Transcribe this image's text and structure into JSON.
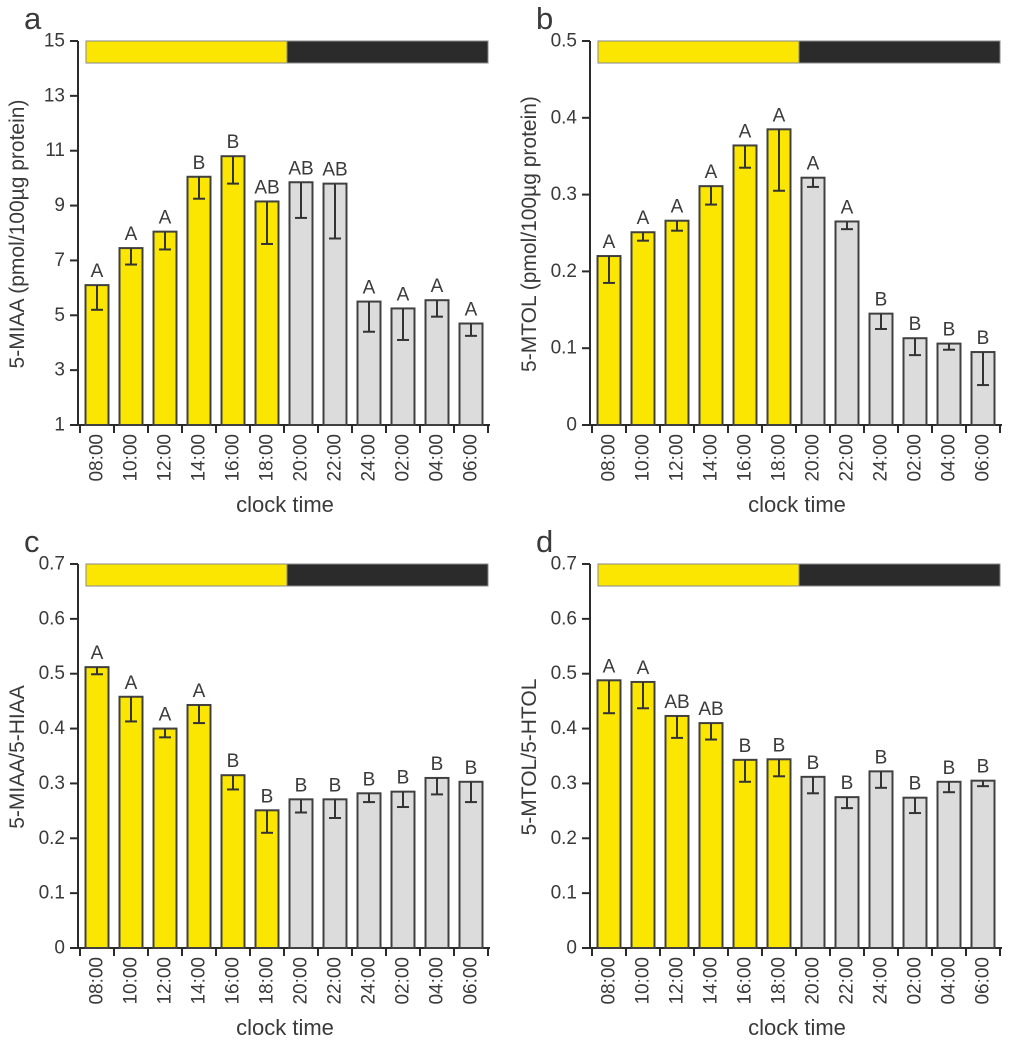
{
  "figure": {
    "background": "#FFFFFF",
    "xlabel": "clock time"
  },
  "colors": {
    "day_bar": "#FAE600",
    "night_bar": "#DCDCDC",
    "bar_outline": "#404040",
    "error_bar": "#333333",
    "axis": "#2B2B2B",
    "text": "#3A3A3A",
    "strip_light": "#FAE600",
    "strip_dark": "#2B2B2B",
    "strip_border": "#8A8A8A"
  },
  "chart_data": [
    {
      "panel": "a",
      "type": "bar",
      "ylabel": "5-MIAA (pmol/100µg protein)",
      "xlabel": "clock time",
      "ylim": [
        1,
        15
      ],
      "yticks": [
        1,
        3,
        5,
        7,
        9,
        11,
        13,
        15
      ],
      "ytick_labels": [
        "1",
        "3",
        "5",
        "7",
        "9",
        "11",
        "13",
        "15"
      ],
      "categories": [
        "08:00",
        "10:00",
        "12:00",
        "14:00",
        "16:00",
        "18:00",
        "20:00",
        "22:00",
        "24:00",
        "02:00",
        "04:00",
        "06:00"
      ],
      "values": [
        6.1,
        7.45,
        8.05,
        10.05,
        10.8,
        9.15,
        9.85,
        9.8,
        5.5,
        5.25,
        5.55,
        4.7
      ],
      "err_lower": [
        0.9,
        0.6,
        0.65,
        0.8,
        1.0,
        1.55,
        1.3,
        2.0,
        1.1,
        1.15,
        0.6,
        0.45
      ],
      "sig_letters": [
        "A",
        "A",
        "A",
        "B",
        "B",
        "AB",
        "AB",
        "AB",
        "A",
        "A",
        "A",
        "A"
      ],
      "n_light_bars": 6,
      "light_dark_strip": {
        "light_fraction": 0.5
      },
      "grid": false,
      "legend": null
    },
    {
      "panel": "b",
      "type": "bar",
      "ylabel": "5-MTOL (pmol/100µg protein)",
      "xlabel": "clock time",
      "ylim": [
        0,
        0.5
      ],
      "yticks": [
        0,
        0.1,
        0.2,
        0.3,
        0.4,
        0.5
      ],
      "ytick_labels": [
        "0",
        "0.1",
        "0.2",
        "0.3",
        "0.4",
        "0.5"
      ],
      "categories": [
        "08:00",
        "10:00",
        "12:00",
        "14:00",
        "16:00",
        "18:00",
        "20:00",
        "22:00",
        "24:00",
        "02:00",
        "04:00",
        "06:00"
      ],
      "values": [
        0.22,
        0.251,
        0.266,
        0.311,
        0.364,
        0.385,
        0.322,
        0.265,
        0.145,
        0.113,
        0.106,
        0.095
      ],
      "err_lower": [
        0.035,
        0.011,
        0.013,
        0.024,
        0.029,
        0.08,
        0.012,
        0.01,
        0.02,
        0.022,
        0.008,
        0.043
      ],
      "sig_letters": [
        "A",
        "A",
        "A",
        "A",
        "A",
        "A",
        "A",
        "A",
        "B",
        "B",
        "B",
        "B"
      ],
      "n_light_bars": 6,
      "light_dark_strip": {
        "light_fraction": 0.5
      },
      "grid": false,
      "legend": null
    },
    {
      "panel": "c",
      "type": "bar",
      "ylabel": "5-MIAA/5-HIAA",
      "xlabel": "clock time",
      "ylim": [
        0,
        0.7
      ],
      "yticks": [
        0,
        0.1,
        0.2,
        0.3,
        0.4,
        0.5,
        0.6,
        0.7
      ],
      "ytick_labels": [
        "0",
        "0.1",
        "0.2",
        "0.3",
        "0.4",
        "0.5",
        "0.6",
        "0.7"
      ],
      "categories": [
        "08:00",
        "10:00",
        "12:00",
        "14:00",
        "16:00",
        "18:00",
        "20:00",
        "22:00",
        "24:00",
        "02:00",
        "04:00",
        "06:00"
      ],
      "values": [
        0.512,
        0.458,
        0.4,
        0.443,
        0.315,
        0.251,
        0.271,
        0.271,
        0.282,
        0.285,
        0.31,
        0.303
      ],
      "err_lower": [
        0.013,
        0.045,
        0.016,
        0.033,
        0.026,
        0.041,
        0.024,
        0.034,
        0.016,
        0.028,
        0.03,
        0.037
      ],
      "sig_letters": [
        "A",
        "A",
        "A",
        "A",
        "B",
        "B",
        "B",
        "B",
        "B",
        "B",
        "B",
        "B"
      ],
      "n_light_bars": 6,
      "light_dark_strip": {
        "light_fraction": 0.5
      },
      "grid": false,
      "legend": null
    },
    {
      "panel": "d",
      "type": "bar",
      "ylabel": "5-MTOL/5-HTOL",
      "xlabel": "clock time",
      "ylim": [
        0,
        0.7
      ],
      "yticks": [
        0,
        0.1,
        0.2,
        0.3,
        0.4,
        0.5,
        0.6,
        0.7
      ],
      "ytick_labels": [
        "0",
        "0.1",
        "0.2",
        "0.3",
        "0.4",
        "0.5",
        "0.6",
        "0.7"
      ],
      "categories": [
        "08:00",
        "10:00",
        "12:00",
        "14:00",
        "16:00",
        "18:00",
        "20:00",
        "22:00",
        "24:00",
        "02:00",
        "04:00",
        "06:00"
      ],
      "values": [
        0.488,
        0.485,
        0.423,
        0.41,
        0.343,
        0.344,
        0.312,
        0.275,
        0.322,
        0.274,
        0.303,
        0.305
      ],
      "err_lower": [
        0.06,
        0.048,
        0.04,
        0.03,
        0.04,
        0.031,
        0.03,
        0.02,
        0.03,
        0.028,
        0.019,
        0.01
      ],
      "sig_letters": [
        "A",
        "A",
        "AB",
        "AB",
        "B",
        "B",
        "B",
        "B",
        "B",
        "B",
        "B",
        "B"
      ],
      "n_light_bars": 6,
      "light_dark_strip": {
        "light_fraction": 0.5
      },
      "grid": false,
      "legend": null
    }
  ]
}
